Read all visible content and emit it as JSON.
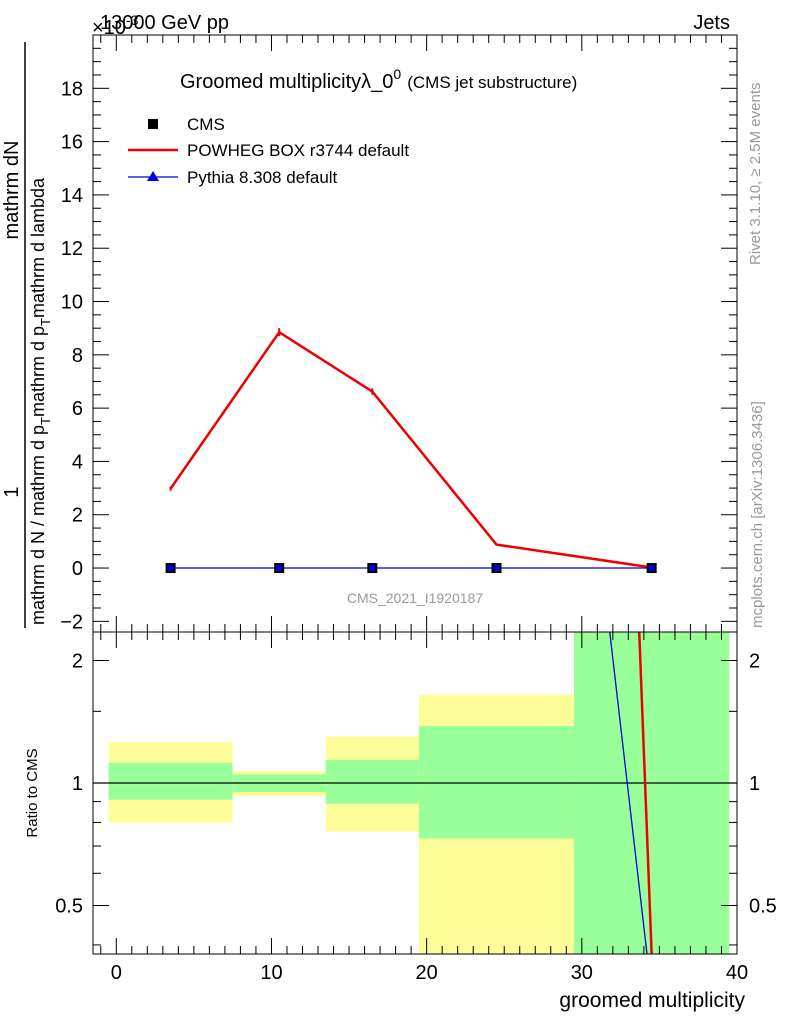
{
  "header": {
    "energy_label": "13000 GeV pp",
    "category_label": "Jets",
    "exponent_label": "×10",
    "exponent_power": "-3"
  },
  "chart_data": [
    {
      "type": "line",
      "title": "Groomed multiplicityλ_0",
      "title_superscript": "0",
      "subtitle": "(CMS jet substructure)",
      "xlim": [
        -1.5,
        40
      ],
      "ylim": [
        -2.4,
        20
      ],
      "ylabel": {
        "numerator": "mathrm dN",
        "numerator_prefix": "1",
        "denominator_p1": "mathrm d N / mathrm d p",
        "denominator_sub": "T",
        "denominator_p2": "mathrm d p",
        "denominator_sub2": "T",
        "denominator_p3": "mathrm d lambda"
      },
      "y_ticks": [
        -2,
        0,
        2,
        4,
        6,
        8,
        10,
        12,
        14,
        16,
        18
      ],
      "y_tick_labels": [
        "−2",
        "0",
        "2",
        "4",
        "6",
        "8",
        "10",
        "12",
        "14",
        "16",
        "18"
      ],
      "analysis_label": "CMS_2021_I1920187",
      "legend_position": "top-left",
      "series": [
        {
          "name": "CMS",
          "style": "markers",
          "marker": "square",
          "color": "#000000",
          "x": [
            3.5,
            10.5,
            16.5,
            24.5,
            34.5
          ],
          "y": [
            0,
            0,
            0,
            0,
            0
          ]
        },
        {
          "name": "POWHEG BOX r3744 default",
          "style": "line",
          "color": "#ee0000",
          "x": [
            3.5,
            10.5,
            16.5,
            24.5,
            34.5
          ],
          "y": [
            2.98,
            8.85,
            6.62,
            0.88,
            0.02
          ],
          "yerr": [
            0.08,
            0.15,
            0.12,
            0.03,
            0.01
          ]
        },
        {
          "name": "Pythia 8.308 default",
          "style": "line",
          "marker": "triangle",
          "color": "#0000dd",
          "x": [
            3.5,
            10.5,
            16.5,
            24.5,
            34.5
          ],
          "y": [
            0,
            0,
            0,
            0,
            0
          ]
        }
      ]
    },
    {
      "type": "ratio",
      "ylabel": "Ratio to CMS",
      "xlabel": "groomed multiplicity",
      "xlim": [
        -1.5,
        40
      ],
      "ylim": [
        0.38,
        2.35
      ],
      "y_scale": "log",
      "y_ticks": [
        0.5,
        1,
        2
      ],
      "y_tick_labels": [
        "0.5",
        "1",
        "2"
      ],
      "x_ticks": [
        0,
        10,
        20,
        30,
        40
      ],
      "x_tick_labels": [
        "0",
        "10",
        "20",
        "30",
        "40"
      ],
      "reference_line": 1,
      "bands": [
        {
          "x0": -0.5,
          "x1": 7.5,
          "inner": [
            0.91,
            1.12
          ],
          "outer": [
            0.8,
            1.26
          ],
          "outer_lower": 0.8
        },
        {
          "x0": 7.5,
          "x1": 13.5,
          "inner": [
            0.95,
            1.05
          ],
          "outer": [
            0.93,
            1.07
          ],
          "outer_lower": 0.93
        },
        {
          "x0": 13.5,
          "x1": 19.5,
          "inner": [
            0.89,
            1.14
          ],
          "outer": [
            0.76,
            1.3
          ],
          "outer_lower": 0.76
        },
        {
          "x0": 19.5,
          "x1": 29.5,
          "inner": [
            0.73,
            1.38
          ],
          "outer": [
            0.36,
            1.65
          ],
          "outer_lower": 0.36
        },
        {
          "x0": 29.5,
          "x1": 39.5,
          "inner": [
            0.36,
            2.4
          ],
          "outer": [
            0.36,
            2.4
          ],
          "outer_lower": 0.36
        }
      ],
      "ratio_lines": [
        {
          "name": "Pythia 8.308 default",
          "color": "#0000dd",
          "points": [
            [
              31.8,
              2.4
            ],
            [
              34.2,
              0.36
            ]
          ]
        },
        {
          "name": "POWHEG BOX r3744 default",
          "color": "#ee0000",
          "points": [
            [
              33.7,
              2.4
            ],
            [
              34.5,
              0.36
            ]
          ]
        }
      ]
    }
  ],
  "side_labels": {
    "rivet": "Rivet 3.1.10, ≥ 2.5M events",
    "mcplots": "mcplots.cern.ch [arXiv:1306.3436]"
  },
  "colors": {
    "inner_band": "#99ff99",
    "outer_band": "#ffff99",
    "axis": "#000000",
    "watermark": "#999999"
  }
}
